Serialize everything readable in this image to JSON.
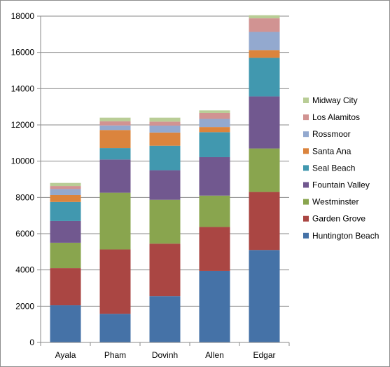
{
  "chart_data": {
    "type": "bar",
    "stacked": true,
    "categories": [
      "Ayala",
      "Pham",
      "Dovinh",
      "Allen",
      "Edgar"
    ],
    "ylim": [
      0,
      18000
    ],
    "yticks": [
      0,
      2000,
      4000,
      6000,
      8000,
      10000,
      12000,
      14000,
      16000,
      18000
    ],
    "grid": true,
    "legend_position": "right",
    "series": [
      {
        "name": "Huntington Beach",
        "color": "#4572a7",
        "values": [
          2050,
          1580,
          2550,
          3950,
          5100
        ]
      },
      {
        "name": "Garden Grove",
        "color": "#aa4643",
        "values": [
          2050,
          3550,
          2900,
          2420,
          3200
        ]
      },
      {
        "name": "Westminster",
        "color": "#89a54e",
        "values": [
          1400,
          3130,
          2420,
          1730,
          2400
        ]
      },
      {
        "name": "Fountain Valley",
        "color": "#71588f",
        "values": [
          1200,
          1830,
          1630,
          2120,
          2870
        ]
      },
      {
        "name": "Seal Beach",
        "color": "#4198af",
        "values": [
          1050,
          630,
          1350,
          1380,
          2130
        ]
      },
      {
        "name": "Santa Ana",
        "color": "#db843d",
        "values": [
          380,
          1000,
          730,
          280,
          430
        ]
      },
      {
        "name": "Rossmoor",
        "color": "#93a9cf",
        "values": [
          330,
          250,
          380,
          450,
          1000
        ]
      },
      {
        "name": "Los Alamitos",
        "color": "#d19392",
        "values": [
          170,
          230,
          220,
          330,
          750
        ]
      },
      {
        "name": "Midway City",
        "color": "#b9cd96",
        "values": [
          170,
          200,
          220,
          140,
          170
        ]
      }
    ]
  }
}
